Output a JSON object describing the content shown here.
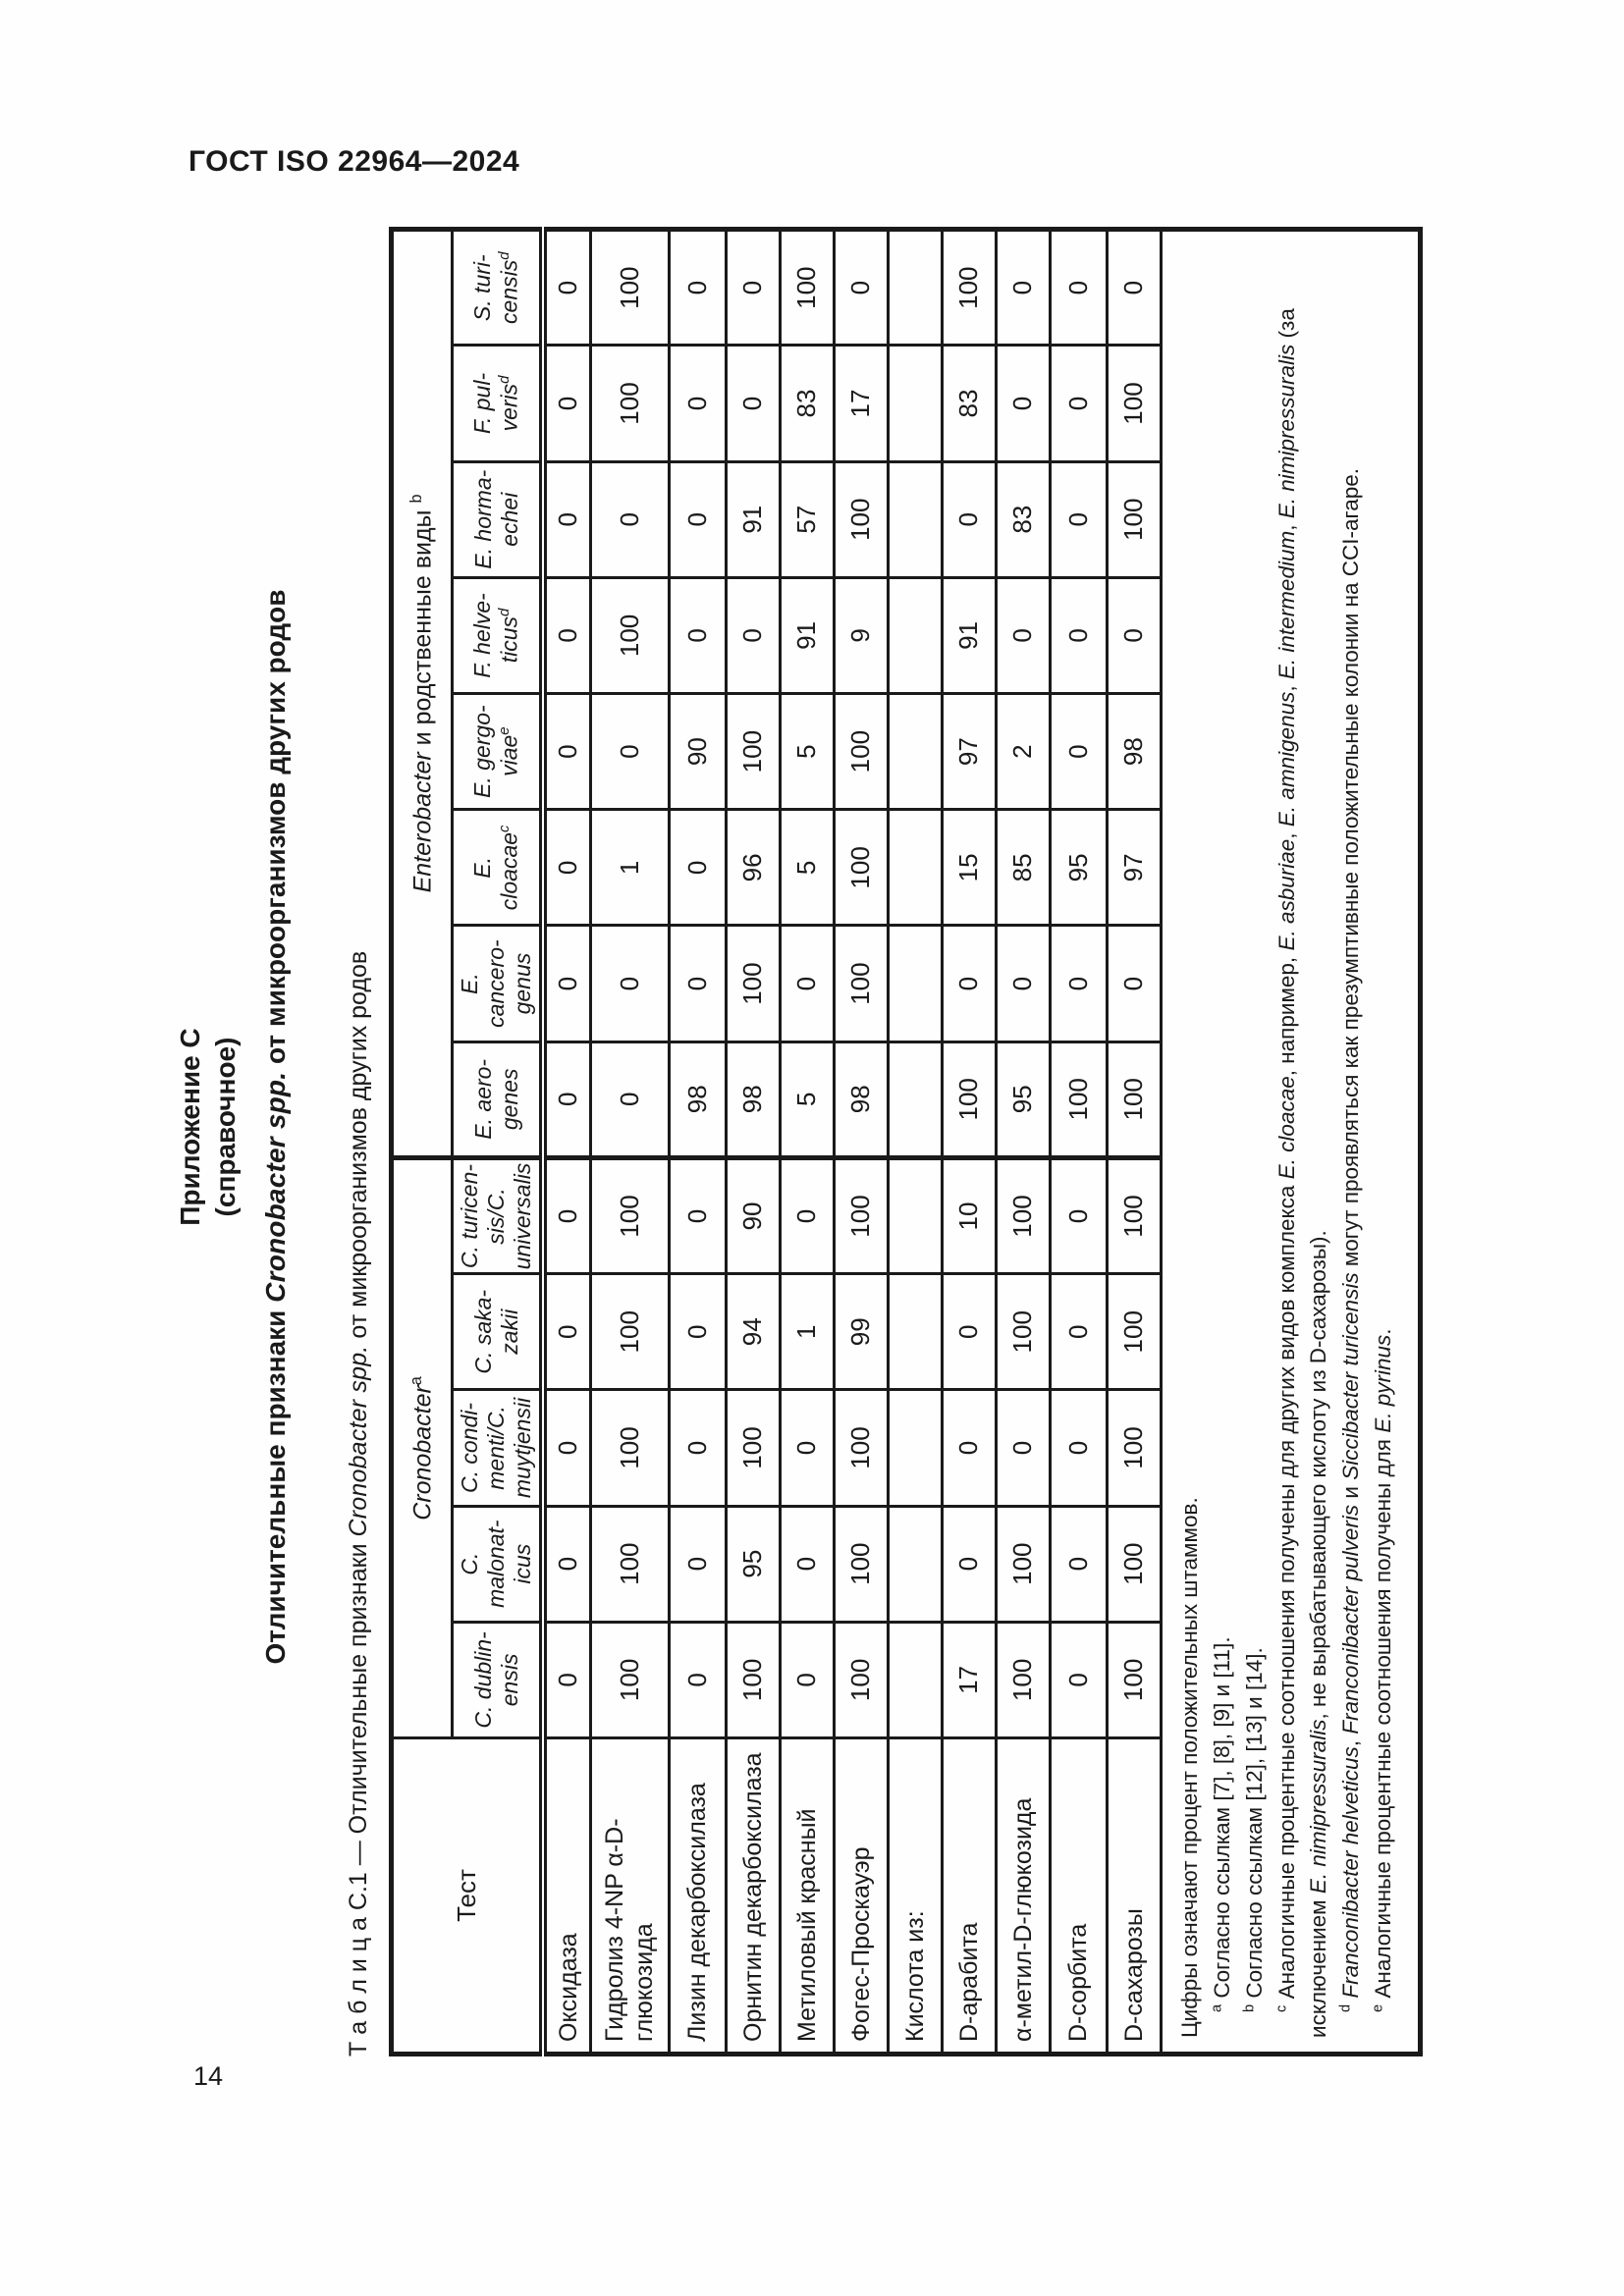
{
  "page": {
    "header": "ГОСТ ISO 22964—2024",
    "number": "14"
  },
  "annex": {
    "title": "Приложение С",
    "subtitle": "(справочное)"
  },
  "heading": {
    "pre": "Отличительные признаки ",
    "italic": "Cronobacter spp.",
    "post": " от микроорганизмов других родов"
  },
  "table": {
    "caption": {
      "label": "Т а б л и ц а   С.1 — Отличительные признаки ",
      "italic": "Cronobacter spp.",
      "rest": " от микроорганизмов других родов"
    },
    "col_header": "Тест",
    "groups": [
      {
        "italic": "Cronobacter",
        "rest": "",
        "sup": "a",
        "span": 5
      },
      {
        "italic": "Enterobacter",
        "rest": " и родственные виды ",
        "sup": "b",
        "span": 8
      }
    ],
    "species": [
      {
        "lines": [
          "C. dublin-",
          "ensis"
        ],
        "sup": ""
      },
      {
        "lines": [
          "C. malonat-",
          "icus"
        ],
        "sup": ""
      },
      {
        "lines": [
          "C. condi-",
          "menti/C.",
          "muytjensii"
        ],
        "sup": ""
      },
      {
        "lines": [
          "C. saka-",
          "zakii"
        ],
        "sup": ""
      },
      {
        "lines": [
          "C. turicen-",
          "sis/C.",
          "universalis"
        ],
        "sup": ""
      },
      {
        "lines": [
          "E. aero-",
          "genes"
        ],
        "sup": ""
      },
      {
        "lines": [
          "E. cancero-",
          "genus"
        ],
        "sup": ""
      },
      {
        "lines": [
          "E. cloacae"
        ],
        "sup": "c"
      },
      {
        "lines": [
          "E. gergo-",
          "viae"
        ],
        "sup": "e"
      },
      {
        "lines": [
          "F. helve-",
          "ticus"
        ],
        "sup": "d"
      },
      {
        "lines": [
          "E. horma-",
          "echei"
        ],
        "sup": ""
      },
      {
        "lines": [
          "F. pul-",
          "veris"
        ],
        "sup": "d"
      },
      {
        "lines": [
          "S. turi-",
          "censis"
        ],
        "sup": "d"
      }
    ],
    "rows": [
      {
        "test": [
          "Оксидаза"
        ],
        "values": [
          "0",
          "0",
          "0",
          "0",
          "0",
          "0",
          "0",
          "0",
          "0",
          "0",
          "0",
          "0",
          "0"
        ]
      },
      {
        "test": [
          "Гидролиз 4-NP α-D-",
          "глюкозида"
        ],
        "values": [
          "100",
          "100",
          "100",
          "100",
          "100",
          "0",
          "0",
          "1",
          "0",
          "100",
          "0",
          "100",
          "100"
        ]
      },
      {
        "test": [
          "Лизин декарбоксилаза"
        ],
        "values": [
          "0",
          "0",
          "0",
          "0",
          "0",
          "98",
          "0",
          "0",
          "90",
          "0",
          "0",
          "0",
          "0"
        ]
      },
      {
        "test": [
          "Орнитин декарбоксилаза"
        ],
        "values": [
          "100",
          "95",
          "100",
          "94",
          "90",
          "98",
          "100",
          "96",
          "100",
          "0",
          "91",
          "0",
          "0"
        ]
      },
      {
        "test": [
          "Метиловый красный"
        ],
        "values": [
          "0",
          "0",
          "0",
          "1",
          "0",
          "5",
          "0",
          "5",
          "5",
          "91",
          "57",
          "83",
          "100"
        ]
      },
      {
        "test": [
          "Фогес-Проскауэр"
        ],
        "values": [
          "100",
          "100",
          "100",
          "99",
          "100",
          "98",
          "100",
          "100",
          "100",
          "9",
          "100",
          "17",
          "0"
        ]
      },
      {
        "test": [
          "Кислота из:"
        ],
        "values": [
          "",
          "",
          "",
          "",
          "",
          "",
          "",
          "",
          "",
          "",
          "",
          "",
          ""
        ]
      },
      {
        "test": [
          "D-арабита"
        ],
        "values": [
          "17",
          "0",
          "0",
          "0",
          "10",
          "100",
          "0",
          "15",
          "97",
          "91",
          "0",
          "83",
          "100"
        ]
      },
      {
        "test": [
          "α-метил-D-глюкозида"
        ],
        "values": [
          "100",
          "100",
          "0",
          "100",
          "100",
          "95",
          "0",
          "85",
          "2",
          "0",
          "83",
          "0",
          "0"
        ]
      },
      {
        "test": [
          "D-сорбита"
        ],
        "values": [
          "0",
          "0",
          "0",
          "0",
          "0",
          "100",
          "0",
          "95",
          "0",
          "0",
          "0",
          "0",
          "0"
        ]
      },
      {
        "test": [
          "D-сахарозы"
        ],
        "values": [
          "100",
          "100",
          "100",
          "100",
          "100",
          "100",
          "0",
          "97",
          "98",
          "0",
          "100",
          "100",
          "0"
        ]
      }
    ],
    "footnotes": [
      {
        "sup": "",
        "indent": false,
        "segs": [
          {
            "t": "Цифры означают процент положительных штаммов."
          }
        ]
      },
      {
        "sup": "a",
        "indent": true,
        "segs": [
          {
            "t": "Согласно ссылкам [7], [8], [9] и [11]."
          }
        ]
      },
      {
        "sup": "b",
        "indent": true,
        "segs": [
          {
            "t": "Согласно ссылкам [12], [13] и [14]."
          }
        ]
      },
      {
        "sup": "c",
        "indent": true,
        "segs": [
          {
            "t": "Аналогичные процентные соотношения получены для других видов комплекса "
          },
          {
            "t": "E. cloacae",
            "i": true
          },
          {
            "t": ", например, "
          },
          {
            "t": "E. asburiae",
            "i": true
          },
          {
            "t": ", "
          },
          {
            "t": "E. amnigenus",
            "i": true
          },
          {
            "t": ", "
          },
          {
            "t": "E. intermedium",
            "i": true
          },
          {
            "t": ", "
          },
          {
            "t": "E. nimipressuralis",
            "i": true
          },
          {
            "t": " (за исключением "
          },
          {
            "t": "E. nimipressuralis",
            "i": true
          },
          {
            "t": ", не вырабатывающего кислоту из D-сахарозы)."
          }
        ]
      },
      {
        "sup": "d",
        "indent": true,
        "segs": [
          {
            "t": "Franconibacter helveticus",
            "i": true
          },
          {
            "t": ", "
          },
          {
            "t": "Franconibacter pulveris",
            "i": true
          },
          {
            "t": " и "
          },
          {
            "t": "Siccibacter turicensis",
            "i": true
          },
          {
            "t": " могут проявляться как презумптивные положительные колонии на CCI-агаре."
          }
        ]
      },
      {
        "sup": "e",
        "indent": true,
        "segs": [
          {
            "t": "Аналогичные процентные соотношения получены для "
          },
          {
            "t": "E. pyrinus",
            "i": true
          },
          {
            "t": "."
          }
        ]
      }
    ]
  }
}
